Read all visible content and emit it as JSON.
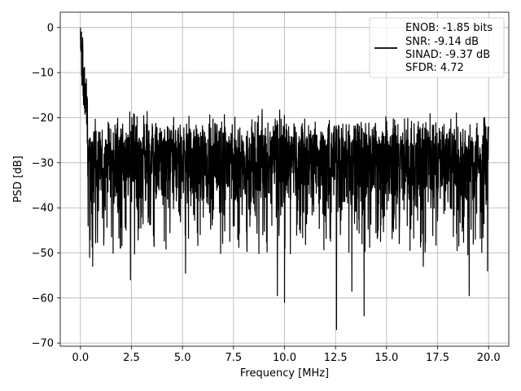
{
  "chart_data": {
    "type": "line",
    "title": "",
    "xlabel": "Frequency [MHz]",
    "ylabel": "PSD [dB]",
    "xlim": [
      -0.99,
      20.99
    ],
    "ylim": [
      -70.7,
      3.4
    ],
    "xticks": [
      0.0,
      2.5,
      5.0,
      7.5,
      10.0,
      12.5,
      15.0,
      17.5,
      20.0
    ],
    "xtick_labels": [
      "0.0",
      "2.5",
      "5.0",
      "7.5",
      "10.0",
      "12.5",
      "15.0",
      "17.5",
      "20.0"
    ],
    "yticks": [
      0,
      -10,
      -20,
      -30,
      -40,
      -50,
      -60,
      -70
    ],
    "ytick_labels": [
      "0",
      "−10",
      "−20",
      "−30",
      "−40",
      "−50",
      "−60",
      "−70"
    ],
    "grid": true,
    "legend_position": "top-right",
    "series": [
      {
        "color": "#000000",
        "description_of_shape": "dense noisy spectrum",
        "peak": {
          "x": 0.0,
          "y": 0.0
        },
        "noise_floor_top": -24,
        "noise_floor_bottom": -43,
        "deep_dips": [
          {
            "x": 0.45,
            "y": -51
          },
          {
            "x": 0.6,
            "y": -53
          },
          {
            "x": 2.45,
            "y": -56
          },
          {
            "x": 5.15,
            "y": -54.5
          },
          {
            "x": 9.65,
            "y": -59.5
          },
          {
            "x": 10.0,
            "y": -61
          },
          {
            "x": 12.55,
            "y": -67
          },
          {
            "x": 13.3,
            "y": -58.5
          },
          {
            "x": 13.9,
            "y": -64
          },
          {
            "x": 16.8,
            "y": -53
          },
          {
            "x": 19.05,
            "y": -59.5
          },
          {
            "x": 19.95,
            "y": -54
          }
        ]
      }
    ],
    "legend_entries": [
      "ENOB: -1.85 bits",
      "SNR: -9.14 dB",
      "SINAD: -9.37 dB",
      "SFDR: 4.72"
    ]
  }
}
